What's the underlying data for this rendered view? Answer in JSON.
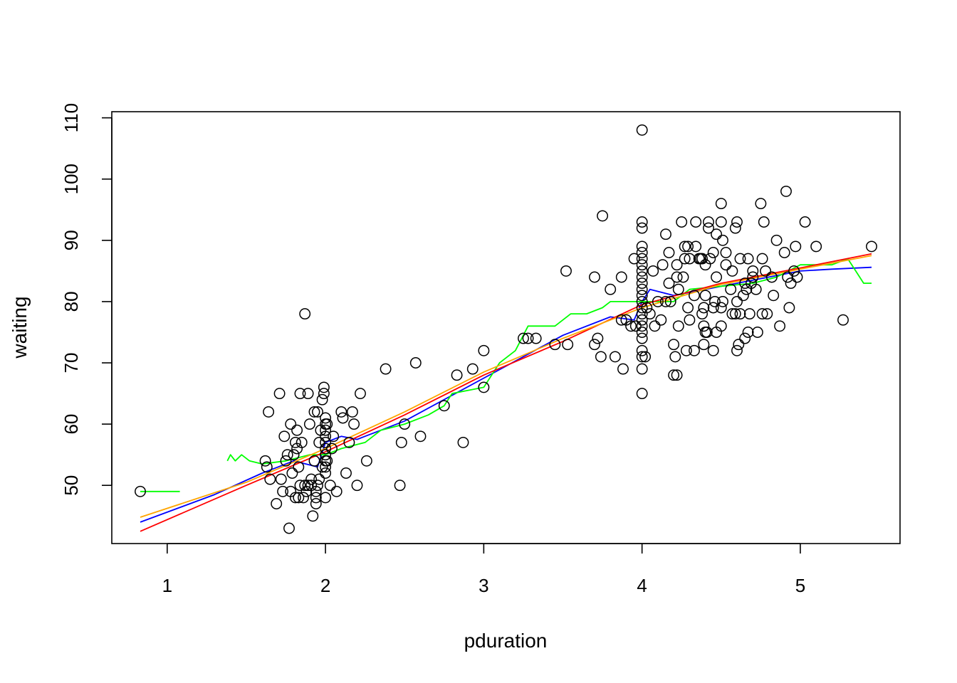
{
  "chart_data": {
    "type": "scatter",
    "title": "",
    "xlabel": "pduration",
    "ylabel": "waiting",
    "xlim": [
      0.65,
      5.63
    ],
    "ylim": [
      40.5,
      111.0
    ],
    "xticks": [
      1,
      2,
      3,
      4,
      5
    ],
    "yticks": [
      50,
      60,
      70,
      80,
      90,
      100,
      110
    ],
    "grid": false,
    "legend": "none",
    "points": [
      [
        0.83,
        49
      ],
      [
        1.62,
        54
      ],
      [
        1.63,
        53
      ],
      [
        1.64,
        62
      ],
      [
        1.65,
        51
      ],
      [
        1.69,
        47
      ],
      [
        1.71,
        65
      ],
      [
        1.72,
        51
      ],
      [
        1.73,
        49
      ],
      [
        1.74,
        58
      ],
      [
        1.75,
        54
      ],
      [
        1.76,
        55
      ],
      [
        1.77,
        43
      ],
      [
        1.78,
        60
      ],
      [
        1.78,
        49
      ],
      [
        1.79,
        52
      ],
      [
        1.8,
        55
      ],
      [
        1.81,
        48
      ],
      [
        1.81,
        57
      ],
      [
        1.82,
        59
      ],
      [
        1.82,
        56
      ],
      [
        1.83,
        48
      ],
      [
        1.83,
        53
      ],
      [
        1.84,
        50
      ],
      [
        1.84,
        65
      ],
      [
        1.85,
        57
      ],
      [
        1.86,
        48
      ],
      [
        1.87,
        50
      ],
      [
        1.87,
        78
      ],
      [
        1.88,
        49
      ],
      [
        1.89,
        50
      ],
      [
        1.89,
        65
      ],
      [
        1.9,
        60
      ],
      [
        1.91,
        50
      ],
      [
        1.91,
        51
      ],
      [
        1.92,
        45
      ],
      [
        1.93,
        62
      ],
      [
        1.93,
        54
      ],
      [
        1.94,
        49
      ],
      [
        1.94,
        47
      ],
      [
        1.94,
        48
      ],
      [
        1.95,
        50
      ],
      [
        1.95,
        62
      ],
      [
        1.96,
        51
      ],
      [
        1.96,
        57
      ],
      [
        1.97,
        59
      ],
      [
        1.98,
        64
      ],
      [
        1.98,
        53
      ],
      [
        1.99,
        65
      ],
      [
        1.99,
        66
      ],
      [
        2.0,
        58
      ],
      [
        2.0,
        55
      ],
      [
        2.0,
        56
      ],
      [
        2.0,
        59
      ],
      [
        2.0,
        60
      ],
      [
        2.0,
        61
      ],
      [
        2.0,
        54
      ],
      [
        2.0,
        53
      ],
      [
        2.0,
        52
      ],
      [
        2.0,
        48
      ],
      [
        2.0,
        57
      ],
      [
        2.01,
        60
      ],
      [
        2.01,
        54
      ],
      [
        2.03,
        50
      ],
      [
        2.04,
        56
      ],
      [
        2.05,
        58
      ],
      [
        2.07,
        49
      ],
      [
        2.1,
        62
      ],
      [
        2.11,
        61
      ],
      [
        2.13,
        52
      ],
      [
        2.15,
        57
      ],
      [
        2.17,
        62
      ],
      [
        2.18,
        60
      ],
      [
        2.2,
        50
      ],
      [
        2.22,
        65
      ],
      [
        2.26,
        54
      ],
      [
        2.38,
        69
      ],
      [
        2.47,
        50
      ],
      [
        2.48,
        57
      ],
      [
        2.5,
        60
      ],
      [
        2.57,
        70
      ],
      [
        2.6,
        58
      ],
      [
        2.75,
        63
      ],
      [
        2.83,
        68
      ],
      [
        2.87,
        57
      ],
      [
        2.93,
        69
      ],
      [
        3.0,
        66
      ],
      [
        3.0,
        72
      ],
      [
        3.25,
        74
      ],
      [
        3.28,
        74
      ],
      [
        3.33,
        74
      ],
      [
        3.45,
        73
      ],
      [
        3.52,
        85
      ],
      [
        3.53,
        73
      ],
      [
        3.7,
        84
      ],
      [
        3.7,
        73
      ],
      [
        3.72,
        74
      ],
      [
        3.74,
        71
      ],
      [
        3.75,
        94
      ],
      [
        3.8,
        82
      ],
      [
        3.83,
        71
      ],
      [
        3.87,
        84
      ],
      [
        3.87,
        77
      ],
      [
        3.88,
        69
      ],
      [
        3.9,
        77
      ],
      [
        3.93,
        76
      ],
      [
        3.95,
        87
      ],
      [
        3.96,
        76
      ],
      [
        4.0,
        65
      ],
      [
        4.0,
        69
      ],
      [
        4.0,
        71
      ],
      [
        4.0,
        72
      ],
      [
        4.0,
        74
      ],
      [
        4.0,
        75
      ],
      [
        4.0,
        76
      ],
      [
        4.0,
        77
      ],
      [
        4.0,
        78
      ],
      [
        4.0,
        79
      ],
      [
        4.0,
        80
      ],
      [
        4.0,
        81
      ],
      [
        4.0,
        82
      ],
      [
        4.0,
        83
      ],
      [
        4.0,
        84
      ],
      [
        4.0,
        85
      ],
      [
        4.0,
        86
      ],
      [
        4.0,
        87
      ],
      [
        4.0,
        88
      ],
      [
        4.0,
        89
      ],
      [
        4.0,
        92
      ],
      [
        4.0,
        93
      ],
      [
        4.0,
        108
      ],
      [
        4.02,
        71
      ],
      [
        4.03,
        79
      ],
      [
        4.05,
        78
      ],
      [
        4.07,
        85
      ],
      [
        4.08,
        76
      ],
      [
        4.1,
        80
      ],
      [
        4.12,
        77
      ],
      [
        4.13,
        86
      ],
      [
        4.15,
        91
      ],
      [
        4.15,
        80
      ],
      [
        4.17,
        83
      ],
      [
        4.17,
        88
      ],
      [
        4.18,
        80
      ],
      [
        4.2,
        73
      ],
      [
        4.2,
        68
      ],
      [
        4.21,
        71
      ],
      [
        4.22,
        68
      ],
      [
        4.22,
        84
      ],
      [
        4.22,
        86
      ],
      [
        4.23,
        82
      ],
      [
        4.23,
        76
      ],
      [
        4.25,
        93
      ],
      [
        4.26,
        84
      ],
      [
        4.27,
        87
      ],
      [
        4.27,
        89
      ],
      [
        4.28,
        72
      ],
      [
        4.29,
        79
      ],
      [
        4.29,
        89
      ],
      [
        4.3,
        77
      ],
      [
        4.3,
        87
      ],
      [
        4.33,
        72
      ],
      [
        4.33,
        81
      ],
      [
        4.34,
        93
      ],
      [
        4.34,
        89
      ],
      [
        4.36,
        87
      ],
      [
        4.37,
        87
      ],
      [
        4.38,
        78
      ],
      [
        4.38,
        87
      ],
      [
        4.39,
        73
      ],
      [
        4.39,
        79
      ],
      [
        4.39,
        76
      ],
      [
        4.4,
        86
      ],
      [
        4.4,
        81
      ],
      [
        4.4,
        75
      ],
      [
        4.41,
        75
      ],
      [
        4.42,
        92
      ],
      [
        4.42,
        93
      ],
      [
        4.43,
        87
      ],
      [
        4.45,
        79
      ],
      [
        4.45,
        72
      ],
      [
        4.45,
        88
      ],
      [
        4.46,
        80
      ],
      [
        4.47,
        75
      ],
      [
        4.47,
        91
      ],
      [
        4.47,
        84
      ],
      [
        4.5,
        96
      ],
      [
        4.5,
        93
      ],
      [
        4.5,
        79
      ],
      [
        4.5,
        76
      ],
      [
        4.51,
        80
      ],
      [
        4.51,
        90
      ],
      [
        4.53,
        88
      ],
      [
        4.53,
        86
      ],
      [
        4.56,
        82
      ],
      [
        4.57,
        78
      ],
      [
        4.57,
        85
      ],
      [
        4.59,
        78
      ],
      [
        4.59,
        92
      ],
      [
        4.6,
        93
      ],
      [
        4.6,
        80
      ],
      [
        4.6,
        72
      ],
      [
        4.61,
        73
      ],
      [
        4.62,
        78
      ],
      [
        4.62,
        87
      ],
      [
        4.64,
        81
      ],
      [
        4.65,
        74
      ],
      [
        4.65,
        83
      ],
      [
        4.66,
        82
      ],
      [
        4.67,
        75
      ],
      [
        4.67,
        87
      ],
      [
        4.68,
        78
      ],
      [
        4.69,
        83
      ],
      [
        4.7,
        85
      ],
      [
        4.7,
        84
      ],
      [
        4.72,
        82
      ],
      [
        4.73,
        75
      ],
      [
        4.75,
        96
      ],
      [
        4.76,
        87
      ],
      [
        4.76,
        78
      ],
      [
        4.77,
        93
      ],
      [
        4.78,
        85
      ],
      [
        4.79,
        78
      ],
      [
        4.82,
        84
      ],
      [
        4.83,
        81
      ],
      [
        4.85,
        90
      ],
      [
        4.87,
        76
      ],
      [
        4.9,
        88
      ],
      [
        4.91,
        98
      ],
      [
        4.92,
        84
      ],
      [
        4.93,
        79
      ],
      [
        4.94,
        83
      ],
      [
        4.96,
        85
      ],
      [
        4.97,
        89
      ],
      [
        4.98,
        84
      ],
      [
        5.03,
        93
      ],
      [
        5.1,
        89
      ],
      [
        5.27,
        77
      ],
      [
        5.45,
        89
      ]
    ],
    "series": [
      {
        "color": "#0000ff",
        "points": [
          [
            0.83,
            44.0
          ],
          [
            1.3,
            48.5
          ],
          [
            1.6,
            52.0
          ],
          [
            1.8,
            54.0
          ],
          [
            1.95,
            53.0
          ],
          [
            2.0,
            57.0
          ],
          [
            2.1,
            58.0
          ],
          [
            2.2,
            57.5
          ],
          [
            2.5,
            60.5
          ],
          [
            3.0,
            67.5
          ],
          [
            3.5,
            74.5
          ],
          [
            3.8,
            77.5
          ],
          [
            3.95,
            77.0
          ],
          [
            4.0,
            80.0
          ],
          [
            4.05,
            82.0
          ],
          [
            4.2,
            81.0
          ],
          [
            4.4,
            82.0
          ],
          [
            4.6,
            83.0
          ],
          [
            4.8,
            84.0
          ],
          [
            5.0,
            85.0
          ],
          [
            5.2,
            85.3
          ],
          [
            5.45,
            85.6
          ]
        ]
      },
      {
        "color": "#00ff00",
        "points": [
          [
            0.83,
            49
          ],
          [
            1.08,
            49
          ],
          [
            null,
            null
          ],
          [
            1.38,
            54
          ],
          [
            1.4,
            55
          ],
          [
            1.43,
            54
          ],
          [
            1.47,
            55
          ],
          [
            1.52,
            54
          ],
          [
            1.6,
            53.5
          ],
          [
            1.75,
            54
          ],
          [
            1.9,
            55
          ],
          [
            2.0,
            55
          ],
          [
            2.1,
            56
          ],
          [
            2.25,
            57
          ],
          [
            2.35,
            59
          ],
          [
            2.5,
            60
          ],
          [
            2.65,
            61.5
          ],
          [
            2.75,
            63
          ],
          [
            2.8,
            65
          ],
          [
            3.0,
            66
          ],
          [
            3.1,
            70
          ],
          [
            3.2,
            72
          ],
          [
            3.28,
            76
          ],
          [
            3.45,
            76
          ],
          [
            3.55,
            78
          ],
          [
            3.65,
            78
          ],
          [
            3.75,
            79
          ],
          [
            3.8,
            80
          ],
          [
            4.0,
            80
          ],
          [
            4.1,
            80
          ],
          [
            4.2,
            80
          ],
          [
            4.3,
            82
          ],
          [
            4.5,
            82.5
          ],
          [
            4.7,
            83
          ],
          [
            4.85,
            84
          ],
          [
            5.0,
            86
          ],
          [
            5.2,
            86
          ],
          [
            5.3,
            87
          ],
          [
            5.35,
            85
          ],
          [
            5.4,
            83
          ],
          [
            5.45,
            83
          ]
        ]
      },
      {
        "color": "#ff0000",
        "points": [
          [
            0.83,
            42.5
          ],
          [
            1.5,
            50.0
          ],
          [
            2.0,
            55.5
          ],
          [
            2.5,
            61.5
          ],
          [
            3.0,
            68.0
          ],
          [
            3.5,
            73.5
          ],
          [
            4.0,
            79.5
          ],
          [
            4.5,
            83.0
          ],
          [
            5.0,
            85.5
          ],
          [
            5.45,
            87.8
          ]
        ]
      },
      {
        "color": "#ffa500",
        "points": [
          [
            0.83,
            44.8
          ],
          [
            1.5,
            50.5
          ],
          [
            2.0,
            56.0
          ],
          [
            2.5,
            62.0
          ],
          [
            3.0,
            68.5
          ],
          [
            3.5,
            74.0
          ],
          [
            4.0,
            79.0
          ],
          [
            4.5,
            82.8
          ],
          [
            5.0,
            85.3
          ],
          [
            5.45,
            87.5
          ]
        ]
      }
    ]
  }
}
